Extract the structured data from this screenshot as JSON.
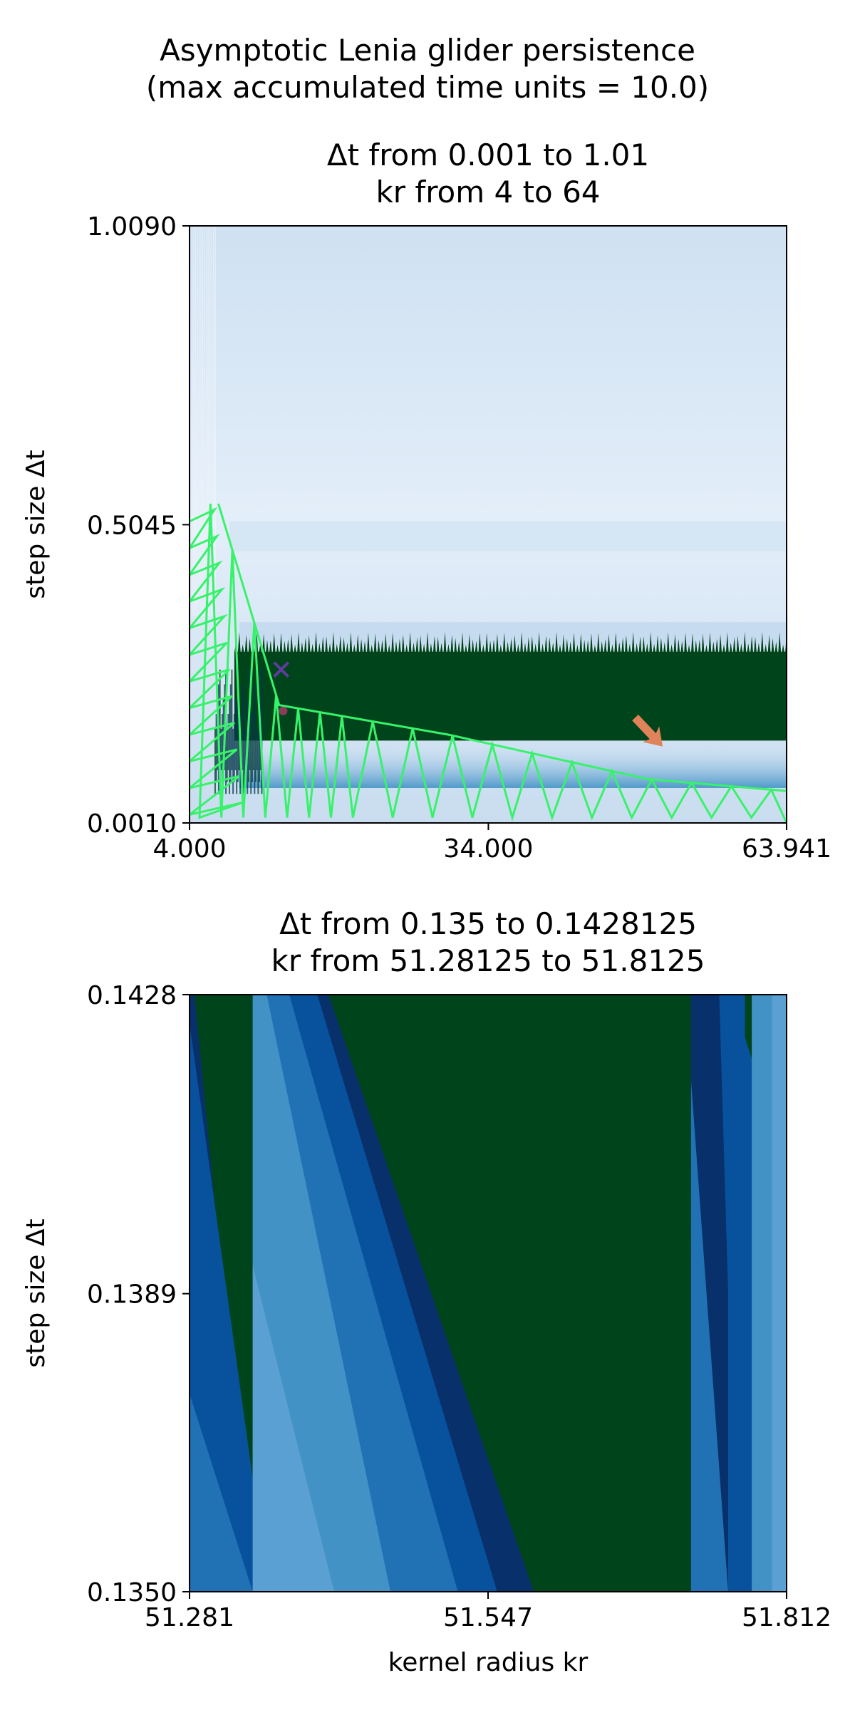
{
  "figure": {
    "title_line1": "Asymptotic Lenia glider persistence",
    "title_line2": "(max accumulated time units = 10.0)"
  },
  "chart_data": [
    {
      "type": "heatmap",
      "title_line1": "Δt from 0.001 to 1.01",
      "title_line2": "kr from 4 to 64",
      "xlabel": "",
      "ylabel": "step size Δt",
      "xlim": [
        4.0,
        63.941
      ],
      "ylim": [
        0.001,
        1.009
      ],
      "x_ticks": [
        4.0,
        34.0,
        63.941
      ],
      "x_tick_labels": [
        "4.000",
        "34.000",
        "63.941"
      ],
      "y_ticks": [
        0.001,
        0.5045,
        1.009
      ],
      "y_tick_labels": [
        "0.0010",
        "0.5045",
        "1.0090"
      ],
      "colormap": "Blues (persistence), dark green = persistent",
      "colors": {
        "persistent": "#00441b",
        "background_high": "#d0e1f2",
        "background_mid": "#e3eef9",
        "background_low": "#c6dbef",
        "band": "#dceaf7",
        "trace_line": "#37f26a",
        "marker_x": "#5e3c99",
        "arrow": "#e0825a"
      },
      "regions": {
        "persistent_band_dt": [
          0.14,
          0.29
        ],
        "persistent_band_kr_start": 8.5,
        "light_band_dt": [
          0.46,
          0.51
        ],
        "upper_band_dt": [
          0.3,
          0.34
        ]
      },
      "trace_path": [
        {
          "kr": 6.9,
          "dt": 0.54
        },
        {
          "kr": 13.0,
          "dt": 0.2
        },
        {
          "kr": 30.0,
          "dt": 0.15
        },
        {
          "kr": 50.0,
          "dt": 0.075
        },
        {
          "kr": 63.9,
          "dt": 0.055
        }
      ],
      "marker": {
        "kr": 13.2,
        "dt": 0.26
      },
      "arrow_target": {
        "kr": 51.5,
        "dt": 0.13
      }
    },
    {
      "type": "heatmap",
      "title_line1": "Δt from 0.135 to 0.1428125",
      "title_line2": "kr from 51.28125 to 51.8125",
      "xlabel": "kernel radius kr",
      "ylabel": "step size Δt",
      "xlim": [
        51.28125,
        51.8125
      ],
      "ylim": [
        0.135,
        0.1428125
      ],
      "x_ticks": [
        51.28125,
        51.546875,
        51.8125
      ],
      "x_tick_labels": [
        "51.281",
        "51.547",
        "51.812"
      ],
      "y_ticks": [
        0.135,
        0.1389,
        0.1428125
      ],
      "y_tick_labels": [
        "0.1350",
        "0.1389",
        "0.1428"
      ],
      "colors": {
        "persistent": "#00441b",
        "blue_dark": "#08306b",
        "blue_mid": "#08519c",
        "blue": "#2171b5",
        "blue_light": "#4292c6",
        "blue_pale": "#5aa0d2"
      }
    }
  ]
}
